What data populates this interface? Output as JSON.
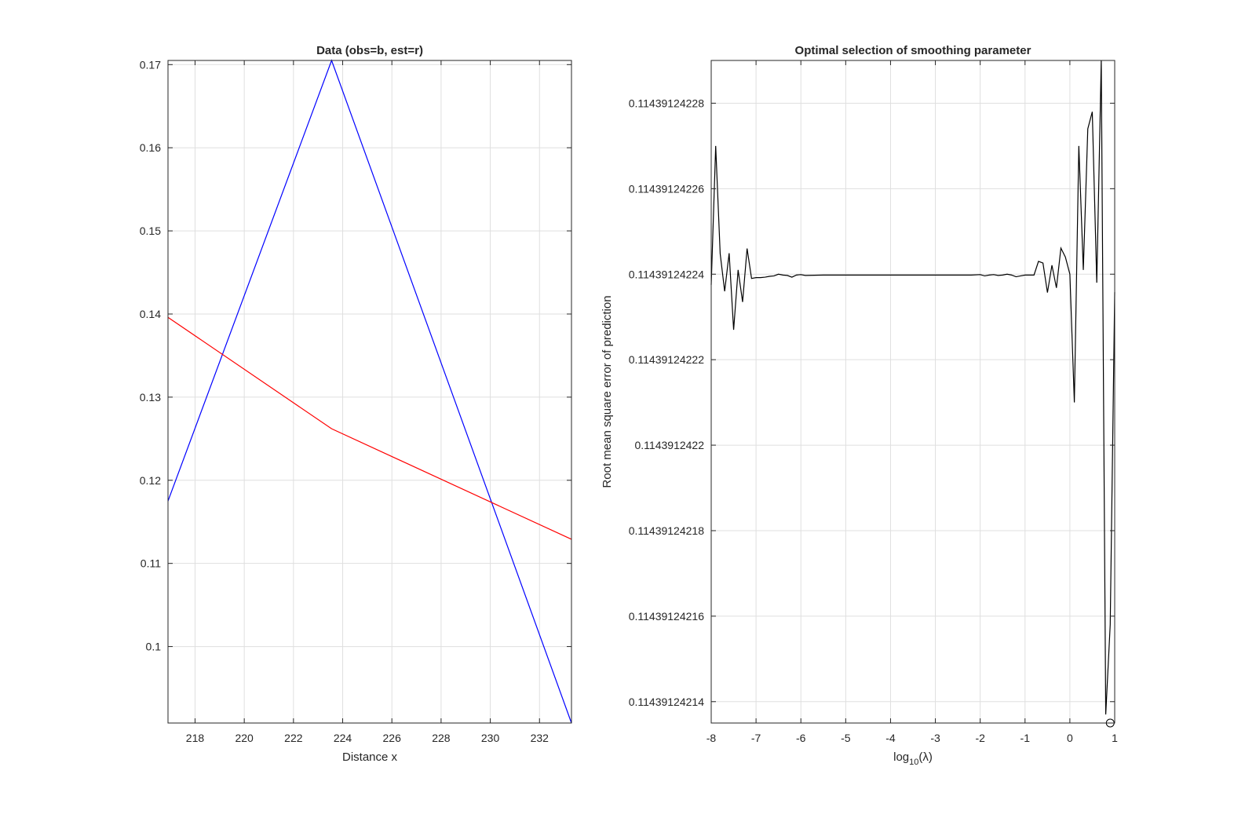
{
  "chart_data": [
    {
      "type": "line",
      "title": "Data (obs=b, est=r)",
      "xlabel": "Distance x",
      "ylabel": "",
      "xlim": [
        216.9,
        233.3
      ],
      "ylim": [
        0.0908,
        0.1705
      ],
      "grid": true,
      "x_ticks": [
        218,
        220,
        222,
        224,
        226,
        228,
        230,
        232
      ],
      "y_ticks": [
        0.1,
        0.11,
        0.12,
        0.13,
        0.14,
        0.15,
        0.16,
        0.17
      ],
      "x_tick_labels": [
        "218",
        "220",
        "222",
        "224",
        "226",
        "228",
        "230",
        "232"
      ],
      "y_tick_labels": [
        "0.1",
        "0.11",
        "0.12",
        "0.13",
        "0.14",
        "0.15",
        "0.16",
        "0.17"
      ],
      "series": [
        {
          "color": "#0000ff",
          "x": [
            216.9,
            223.55,
            233.3
          ],
          "y": [
            0.1175,
            0.1705,
            0.0908
          ]
        },
        {
          "color": "#ff0000",
          "x": [
            216.9,
            223.55,
            233.3
          ],
          "y": [
            0.1396,
            0.1262,
            0.1129
          ]
        }
      ]
    },
    {
      "type": "line",
      "title": "Optimal selection of smoothing parameter",
      "xlabel_base": "log",
      "xlabel_sub": "10",
      "xlabel_arg": "(λ)",
      "ylabel": "Root mean square error of prediction",
      "xlim": [
        -8,
        1
      ],
      "ylim": [
        0.114391242135,
        0.11439124229
      ],
      "grid": true,
      "x_ticks": [
        -8,
        -7,
        -6,
        -5,
        -4,
        -3,
        -2,
        -1,
        0,
        1
      ],
      "x_tick_labels": [
        "-8",
        "-7",
        "-6",
        "-5",
        "-4",
        "-3",
        "-2",
        "-1",
        "0",
        "1"
      ],
      "y_ticks": [
        0.11439124214,
        0.11439124216,
        0.11439124218,
        0.1143912422,
        0.11439124222,
        0.11439124224,
        0.11439124226,
        0.11439124228
      ],
      "y_tick_labels": [
        "0.11439124214",
        "0.11439124216",
        "0.11439124218",
        "0.1143912422",
        "0.11439124222",
        "0.11439124224",
        "0.11439124226",
        "0.11439124228"
      ],
      "series": [
        {
          "color": "#000000",
          "x": [
            -8.0,
            -7.9,
            -7.8,
            -7.7,
            -7.6,
            -7.5,
            -7.4,
            -7.3,
            -7.2,
            -7.1,
            -7.0,
            -6.9,
            -6.8,
            -6.7,
            -6.6,
            -6.5,
            -6.4,
            -6.3,
            -6.2,
            -6.1,
            -6.0,
            -5.9,
            -5.5,
            -5.0,
            -4.5,
            -4.0,
            -3.5,
            -3.0,
            -2.5,
            -2.2,
            -2.0,
            -1.9,
            -1.8,
            -1.7,
            -1.6,
            -1.5,
            -1.4,
            -1.3,
            -1.2,
            -1.1,
            -1.0,
            -0.9,
            -0.8,
            -0.7,
            -0.6,
            -0.5,
            -0.4,
            -0.3,
            -0.2,
            -0.1,
            0.0,
            0.1,
            0.2,
            0.3,
            0.4,
            0.5,
            0.6,
            0.7,
            0.8,
            0.9,
            1.0
          ],
          "y": [
            0.1143912422375,
            0.11439124227,
            0.1143912422448,
            0.114391242236,
            0.1143912422449,
            0.114391242227,
            0.114391242241,
            0.1143912422335,
            0.114391242246,
            0.114391242239,
            0.1143912422392,
            0.1143912422392,
            0.1143912422393,
            0.1143912422395,
            0.1143912422396,
            0.11439124224,
            0.1143912422398,
            0.1143912422397,
            0.1143912422393,
            0.1143912422398,
            0.1143912422399,
            0.1143912422397,
            0.1143912422398,
            0.1143912422398,
            0.1143912422398,
            0.1143912422398,
            0.1143912422398,
            0.1143912422398,
            0.1143912422398,
            0.1143912422398,
            0.1143912422399,
            0.1143912422396,
            0.1143912422398,
            0.1143912422399,
            0.1143912422397,
            0.1143912422398,
            0.11439124224,
            0.1143912422398,
            0.1143912422394,
            0.1143912422396,
            0.1143912422398,
            0.1143912422398,
            0.1143912422398,
            0.114391242243,
            0.1143912422426,
            0.1143912422357,
            0.1143912422421,
            0.1143912422368,
            0.1143912422461,
            0.114391242244,
            0.11439124224,
            0.11439124221,
            0.11439124227,
            0.114391242241,
            0.114391242274,
            0.114391242278,
            0.114391242238,
            0.11439124229,
            0.114391242137,
            0.114391242158,
            0.1143912422358
          ]
        }
      ],
      "marker": {
        "shape": "circle",
        "x": 0.9,
        "y": 0.114391242135
      }
    }
  ]
}
